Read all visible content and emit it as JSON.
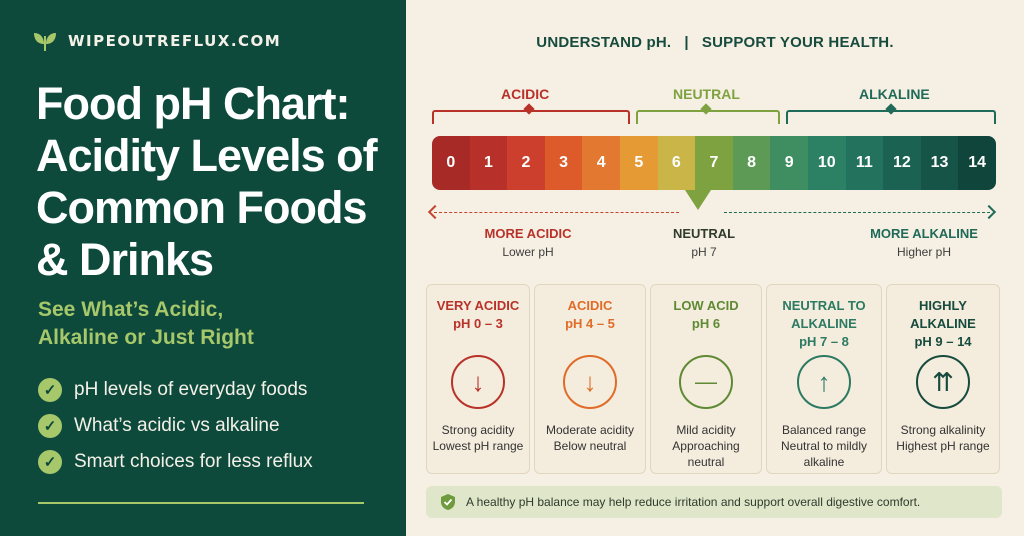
{
  "brand": {
    "name": "WIPEOUTREFLUX.COM",
    "icon": "leaf-icon"
  },
  "left": {
    "title_lines": [
      "Food pH Chart:",
      "Acidity Levels of",
      "Common Foods",
      "& Drinks"
    ],
    "subtitle_lines": [
      "See What’s Acidic,",
      "Alkaline or Just Right"
    ],
    "checks": [
      "pH levels of everyday foods",
      "What’s acidic vs alkaline",
      "Smart choices for less reflux"
    ]
  },
  "tagline": "UNDERSTAND pH.   |   SUPPORT YOUR HEALTH.",
  "zones": [
    {
      "label": "ACIDIC",
      "color": "#b8322a"
    },
    {
      "label": "NEUTRAL",
      "color": "#7fa241"
    },
    {
      "label": "ALKALINE",
      "color": "#1f6a58"
    }
  ],
  "scale": [
    {
      "n": "0",
      "color": "#a82a26"
    },
    {
      "n": "1",
      "color": "#b8302a"
    },
    {
      "n": "2",
      "color": "#cb3f2c"
    },
    {
      "n": "3",
      "color": "#dd5a2b"
    },
    {
      "n": "4",
      "color": "#e37830"
    },
    {
      "n": "5",
      "color": "#e69a33"
    },
    {
      "n": "6",
      "color": "#c9b548"
    },
    {
      "n": "7",
      "color": "#7fa241"
    },
    {
      "n": "8",
      "color": "#5d9a56"
    },
    {
      "n": "9",
      "color": "#3f8e62"
    },
    {
      "n": "10",
      "color": "#2c8064"
    },
    {
      "n": "11",
      "color": "#22725d"
    },
    {
      "n": "12",
      "color": "#1b6252"
    },
    {
      "n": "13",
      "color": "#155447"
    },
    {
      "n": "14",
      "color": "#0f453b"
    }
  ],
  "directions": {
    "acidic": {
      "title": "MORE ACIDIC",
      "sub": "Lower pH"
    },
    "neutral": {
      "title": "NEUTRAL",
      "sub": "pH 7"
    },
    "alkaline": {
      "title": "MORE ALKALINE",
      "sub": "Higher pH"
    }
  },
  "cards": [
    {
      "title": "VERY ACIDIC",
      "range": "pH 0 – 3",
      "icon": "arrow-down-icon",
      "glyph": "↓",
      "color": "#b8322a",
      "desc": [
        "Strong acidity",
        "Lowest pH range"
      ]
    },
    {
      "title": "ACIDIC",
      "range": "pH 4 – 5",
      "icon": "arrow-down-icon",
      "glyph": "↓",
      "color": "#df6c28",
      "desc": [
        "Moderate acidity",
        "Below neutral"
      ]
    },
    {
      "title": "LOW ACID",
      "range": "pH 6",
      "icon": "minus-icon",
      "glyph": "—",
      "color": "#5f8a34",
      "desc": [
        "Mild acidity",
        "Approaching",
        "neutral"
      ]
    },
    {
      "title": "NEUTRAL TO",
      "title2": "ALKALINE",
      "range": "pH 7 – 8",
      "icon": "arrow-up-icon",
      "glyph": "↑",
      "color": "#2c7a63",
      "desc": [
        "Balanced range",
        "Neutral to mildly",
        "alkaline"
      ]
    },
    {
      "title": "HIGHLY",
      "title2": "ALKALINE",
      "range": "pH 9 – 14",
      "icon": "double-arrow-up-icon",
      "glyph": "⇈",
      "color": "#164b3e",
      "desc": [
        "Strong alkalinity",
        "Highest pH range"
      ]
    }
  ],
  "note": {
    "text": "A healthy pH balance may help reduce irritation and support overall digestive comfort.",
    "icon": "shield-check-icon"
  }
}
